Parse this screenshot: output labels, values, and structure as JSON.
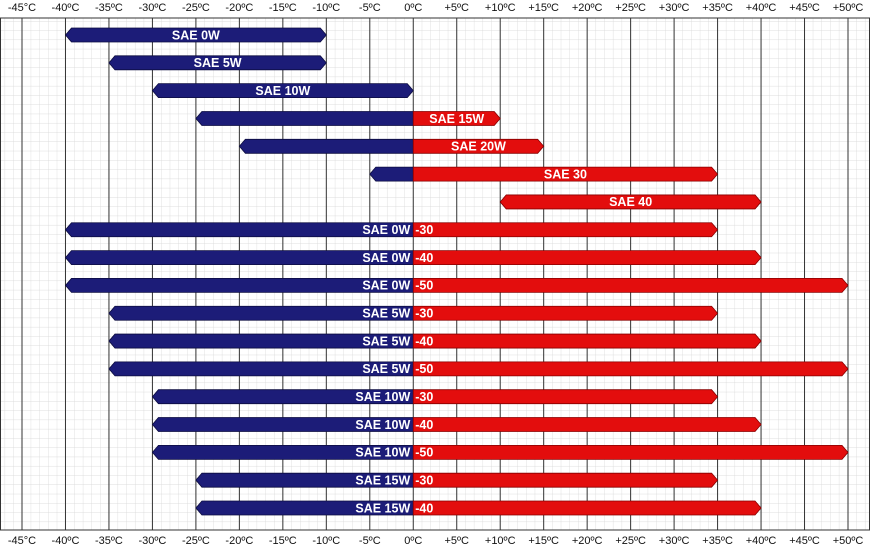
{
  "chart_data": {
    "type": "range",
    "cold_color": "#1c1c78",
    "warm_color": "#e30d0d",
    "color_split": 0,
    "xlim": [
      -45,
      50
    ],
    "xticks": [
      {
        "value": -45,
        "label": "-45°C"
      },
      {
        "value": -40,
        "label": "-40ºC"
      },
      {
        "value": -35,
        "label": "-35ºC"
      },
      {
        "value": -30,
        "label": "-30ºC"
      },
      {
        "value": -25,
        "label": "-25ºC"
      },
      {
        "value": -20,
        "label": "-20ºC"
      },
      {
        "value": -15,
        "label": "-15ºC"
      },
      {
        "value": -10,
        "label": "-10ºC"
      },
      {
        "value": -5,
        "label": "-5ºC"
      },
      {
        "value": 0,
        "label": "0ºC"
      },
      {
        "value": 5,
        "label": "+5ºC"
      },
      {
        "value": 10,
        "label": "+10ºC"
      },
      {
        "value": 15,
        "label": "+15ºC"
      },
      {
        "value": 20,
        "label": "+20ºC"
      },
      {
        "value": 25,
        "label": "+25ºC"
      },
      {
        "value": 30,
        "label": "+30ºC"
      },
      {
        "value": 35,
        "label": "+35ºC"
      },
      {
        "value": 40,
        "label": "+40ºC"
      },
      {
        "value": 45,
        "label": "+45ºC"
      },
      {
        "value": 50,
        "label": "+50ºC"
      }
    ],
    "bars": [
      {
        "label": "SAE 0W",
        "low": -40,
        "high": -10
      },
      {
        "label": "SAE 5W",
        "low": -35,
        "high": -10
      },
      {
        "label": "SAE 10W",
        "low": -30,
        "high": 0
      },
      {
        "label": "SAE 15W",
        "low": -25,
        "high": 10
      },
      {
        "label": "SAE 20W",
        "low": -20,
        "high": 15
      },
      {
        "label": "SAE 30",
        "low": -5,
        "high": 35
      },
      {
        "label": "SAE 40",
        "low": 10,
        "high": 40
      },
      {
        "label": "SAE 0W",
        "suffix": "-30",
        "low": -40,
        "high": 35
      },
      {
        "label": "SAE 0W",
        "suffix": "-40",
        "low": -40,
        "high": 40
      },
      {
        "label": "SAE 0W",
        "suffix": "-50",
        "low": -40,
        "high": 50
      },
      {
        "label": "SAE 5W",
        "suffix": "-30",
        "low": -35,
        "high": 35
      },
      {
        "label": "SAE 5W",
        "suffix": "-40",
        "low": -35,
        "high": 40
      },
      {
        "label": "SAE 5W",
        "suffix": "-50",
        "low": -35,
        "high": 50
      },
      {
        "label": "SAE 10W",
        "suffix": "-30",
        "low": -30,
        "high": 35
      },
      {
        "label": "SAE 10W",
        "suffix": "-40",
        "low": -30,
        "high": 40
      },
      {
        "label": "SAE 10W",
        "suffix": "-50",
        "low": -30,
        "high": 50
      },
      {
        "label": "SAE 15W",
        "suffix": "-30",
        "low": -25,
        "high": 35
      },
      {
        "label": "SAE 15W",
        "suffix": "-40",
        "low": -25,
        "high": 40
      }
    ]
  }
}
